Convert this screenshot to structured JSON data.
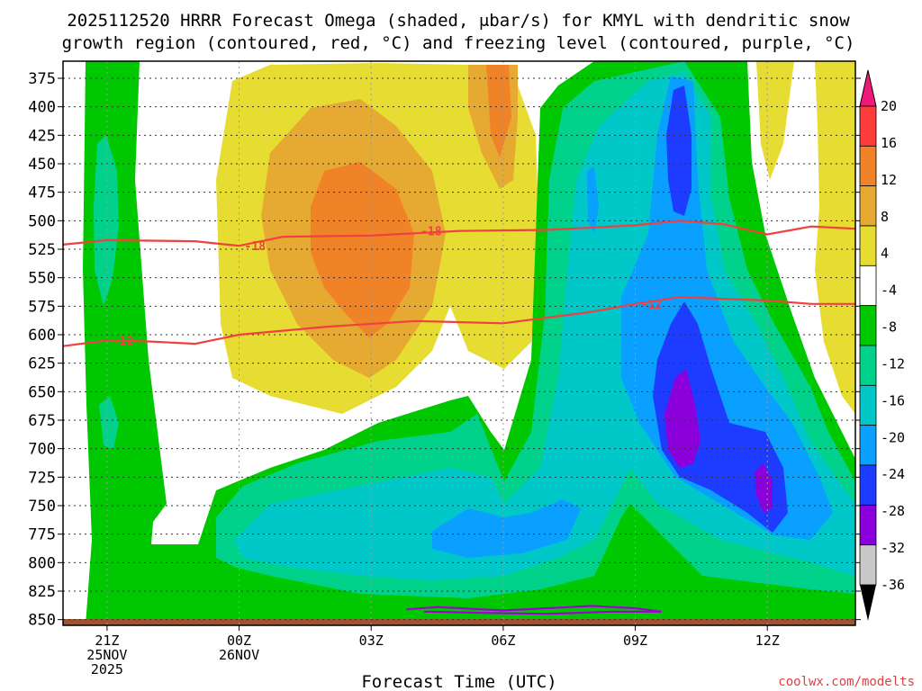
{
  "chart_data": {
    "type": "heatmap",
    "title_line1": "2025112520 HRRR Forecast Omega (shaded, μbar/s) for KMYL with dendritic snow",
    "title_line2": "growth region (contoured, red, °C) and freezing level (contoured, purple, °C)",
    "xlabel": "Forecast Time (UTC)",
    "credit": "coolwx.com/modelts",
    "x_range_hours": [
      -1,
      17
    ],
    "y_range_hpa": [
      360,
      855
    ],
    "x_ticks": [
      {
        "hour": 0,
        "lines": [
          "21Z",
          "25NOV",
          "2025"
        ]
      },
      {
        "hour": 3,
        "lines": [
          "00Z",
          "26NOV"
        ]
      },
      {
        "hour": 6,
        "lines": [
          "03Z"
        ]
      },
      {
        "hour": 9,
        "lines": [
          "06Z"
        ]
      },
      {
        "hour": 12,
        "lines": [
          "09Z"
        ]
      },
      {
        "hour": 15,
        "lines": [
          "12Z"
        ]
      }
    ],
    "y_ticks": [
      375,
      400,
      425,
      450,
      475,
      500,
      525,
      550,
      575,
      600,
      625,
      650,
      675,
      700,
      725,
      750,
      775,
      800,
      825,
      850
    ],
    "colorbar": {
      "labels": [
        "20",
        "16",
        "12",
        "8",
        "4",
        "-4",
        "-8",
        "-12",
        "-16",
        "-20",
        "-24",
        "-28",
        "-32",
        "-36"
      ],
      "colors": [
        "#ff3c3c",
        "#f08228",
        "#e6aa32",
        "#e6dc32",
        "#ffffff",
        "#00c800",
        "#00d28c",
        "#00c8c8",
        "#0aa0ff",
        "#1e3cff",
        "#8c00dc",
        "#c8c8c8"
      ]
    },
    "contours": [
      {
        "label": "-18",
        "color": "#f04040",
        "points": [
          [
            -1,
            521
          ],
          [
            0,
            517
          ],
          [
            2,
            518
          ],
          [
            3,
            522
          ],
          [
            4,
            514
          ],
          [
            6,
            513
          ],
          [
            8,
            509
          ],
          [
            10,
            508
          ],
          [
            12,
            504
          ],
          [
            13,
            500
          ],
          [
            14,
            503
          ],
          [
            15,
            512
          ],
          [
            16,
            505
          ],
          [
            17,
            507
          ]
        ]
      },
      {
        "label": "-12",
        "color": "#f04040",
        "points": [
          [
            -1,
            610
          ],
          [
            0,
            605
          ],
          [
            1,
            606
          ],
          [
            2,
            608
          ],
          [
            3,
            600
          ],
          [
            5,
            593
          ],
          [
            7,
            588
          ],
          [
            9,
            590
          ],
          [
            11,
            580
          ],
          [
            12,
            573
          ],
          [
            13,
            567
          ],
          [
            15,
            570
          ],
          [
            16,
            573
          ],
          [
            17,
            573
          ]
        ]
      },
      {
        "label": "0",
        "color": "#a000d0",
        "points": [
          [
            6.8,
            841
          ],
          [
            7.5,
            839
          ],
          [
            9,
            842
          ],
          [
            10,
            840
          ],
          [
            11,
            838
          ],
          [
            12,
            840
          ],
          [
            12.6,
            843
          ],
          [
            11.5,
            843
          ],
          [
            10,
            845
          ],
          [
            8.5,
            844
          ],
          [
            7.2,
            843
          ]
        ]
      }
    ]
  }
}
